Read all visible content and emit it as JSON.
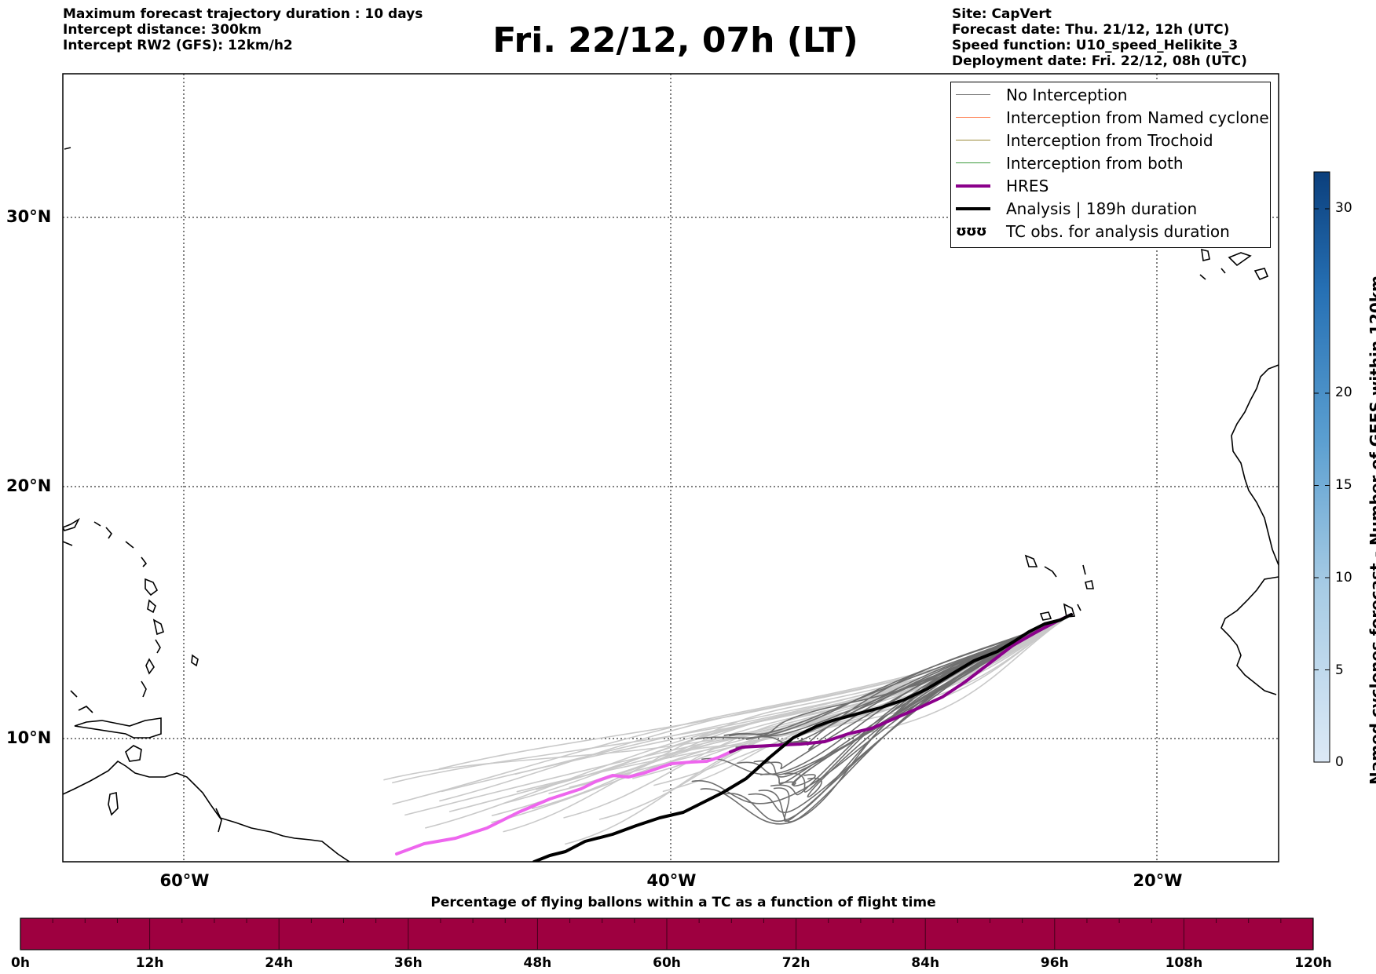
{
  "header": {
    "left_lines": [
      "Maximum forecast trajectory duration : 10 days",
      "Intercept distance: 300km",
      "Intercept RW2 (GFS):  12km/h2"
    ],
    "title": "Fri. 22/12, 07h (LT)",
    "right_lines": [
      "Site: CapVert",
      "Forecast date: Thu. 21/12, 12h (UTC)",
      "Speed function: U10_speed_Helikite_3",
      "Deployment date: Fri. 22/12, 08h (UTC)"
    ]
  },
  "map": {
    "lat_labels": [
      "30°N",
      "20°N",
      "10°N"
    ],
    "lon_labels": [
      "60°W",
      "40°W",
      "20°W"
    ],
    "lon_range": [
      -65,
      -15
    ],
    "lat_range": [
      5.3,
      34.5
    ],
    "colors": {
      "no_interception": "#808080",
      "named_cyclone": "#ff7f50",
      "trochoid": "#9b8a3a",
      "both": "#3a9a3a",
      "hres": "#8b008b",
      "analysis": "#000000"
    }
  },
  "legend": {
    "items": [
      {
        "label": "No Interception",
        "color": "#808080",
        "style": "thin"
      },
      {
        "label": "Interception from Named cyclone",
        "color": "#ff7f50",
        "style": "thin"
      },
      {
        "label": "Interception from Trochoid",
        "color": "#9b8a3a",
        "style": "thin"
      },
      {
        "label": "Interception from both",
        "color": "#3a9a3a",
        "style": "thin"
      },
      {
        "label": "HRES",
        "color": "#8b008b",
        "style": "thick"
      },
      {
        "label": "Analysis | 189h duration",
        "color": "#000000",
        "style": "thick"
      },
      {
        "label": "TC obs. for analysis duration",
        "color": "#000000",
        "style": "symbol",
        "symbol": "ʊʊʊ"
      }
    ]
  },
  "colorbar_vertical": {
    "label": "Named cyclones forecast - Number of GEFS within 120km",
    "ticks": [
      "0",
      "5",
      "10",
      "15",
      "20",
      "30"
    ],
    "tick_values": [
      0,
      5,
      10,
      15,
      20,
      30
    ],
    "range": [
      0,
      32
    ]
  },
  "colorbar_horizontal": {
    "title": "Percentage of flying ballons within a TC as a function of flight time",
    "ticks": [
      "0h",
      "12h",
      "24h",
      "36h",
      "48h",
      "60h",
      "72h",
      "84h",
      "96h",
      "108h",
      "120h"
    ],
    "fill_color": "#9e0040"
  }
}
